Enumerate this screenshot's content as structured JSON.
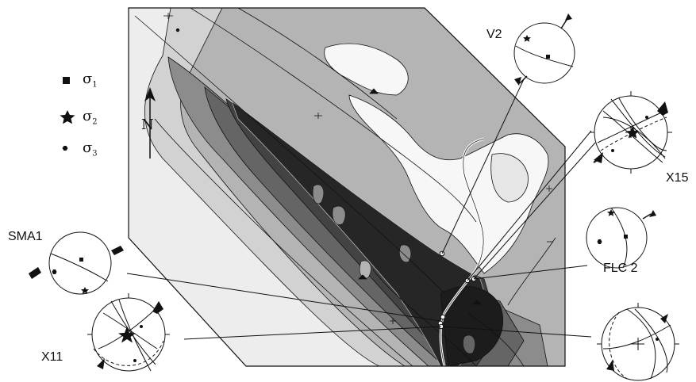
{
  "legend": {
    "items": [
      {
        "symbol": "square",
        "label": "σ",
        "sub": "1"
      },
      {
        "symbol": "star",
        "label": "σ",
        "sub": "2"
      },
      {
        "symbol": "hexagon",
        "label": "σ",
        "sub": "3"
      }
    ]
  },
  "north_label": "N",
  "stereonet_labels": {
    "v2": "V2",
    "x15": "X15",
    "sma1": "SMA1",
    "flc2": "FLC 2",
    "x11": "X11"
  },
  "colors": {
    "shade_1": "#ededed",
    "shade_2": "#d2d2d2",
    "shade_3": "#b4b4b4",
    "shade_4": "#8c8c8c",
    "shade_5": "#656565",
    "shade_6": "#434343",
    "shade_7": "#262626",
    "lobe": "#f7f7f7",
    "line": "#111111"
  }
}
